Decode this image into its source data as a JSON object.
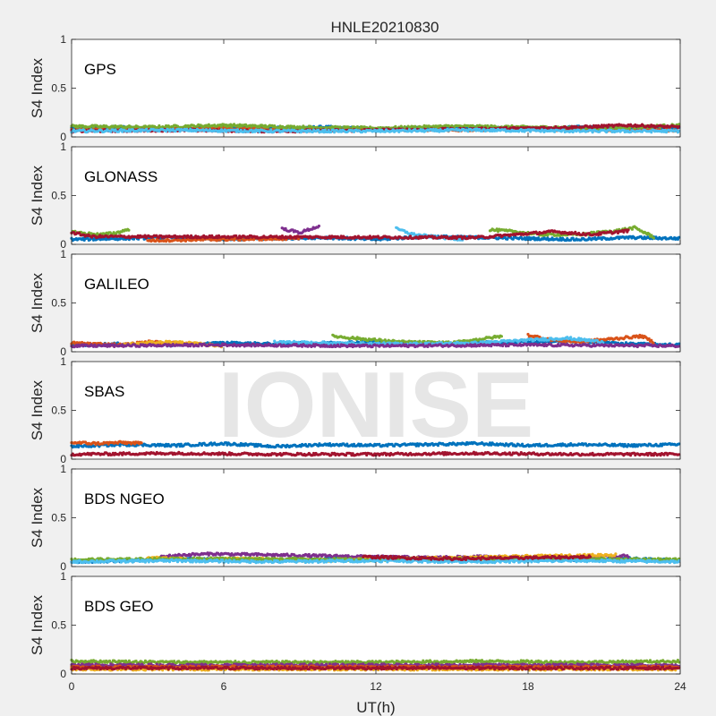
{
  "chart_data": {
    "type": "scatter",
    "title": "HNLE20210830",
    "xlabel": "UT(h)",
    "ylabel": "S4 Index",
    "xlim": [
      0,
      24
    ],
    "ylim": [
      0,
      1
    ],
    "xticks": [
      "0",
      "6",
      "12",
      "18",
      "24"
    ],
    "yticks": [
      "0",
      "0.5",
      "1"
    ],
    "watermark": "IONISE",
    "grid": false,
    "colors": [
      "#0072bd",
      "#d95319",
      "#edb120",
      "#7e2f8e",
      "#77ac30",
      "#4dbeee",
      "#a2142f"
    ],
    "panels": [
      {
        "label": "GPS",
        "series": [
          {
            "color": "#0072bd",
            "x": [
              0,
              2,
              4,
              6,
              8,
              10,
              12,
              14,
              16,
              18,
              20,
              22,
              24
            ],
            "y": [
              0.09,
              0.1,
              0.08,
              0.1,
              0.09,
              0.1,
              0.08,
              0.09,
              0.1,
              0.08,
              0.1,
              0.09,
              0.1
            ]
          },
          {
            "color": "#d95319",
            "x": [
              0,
              3,
              6,
              9,
              12,
              15,
              18,
              21,
              24
            ],
            "y": [
              0.07,
              0.08,
              0.09,
              0.07,
              0.08,
              0.07,
              0.08,
              0.07,
              0.07
            ]
          },
          {
            "color": "#77ac30",
            "x": [
              0,
              3,
              6,
              9,
              12,
              15,
              18,
              21,
              24
            ],
            "y": [
              0.11,
              0.1,
              0.12,
              0.1,
              0.09,
              0.11,
              0.1,
              0.09,
              0.12
            ]
          },
          {
            "color": "#a2142f",
            "x": [
              0,
              4,
              8,
              12,
              16,
              20,
              22,
              24
            ],
            "y": [
              0.06,
              0.07,
              0.06,
              0.07,
              0.08,
              0.1,
              0.12,
              0.1
            ]
          },
          {
            "color": "#4dbeee",
            "x": [
              0,
              4,
              8,
              12,
              16,
              20,
              24
            ],
            "y": [
              0.06,
              0.07,
              0.06,
              0.06,
              0.07,
              0.06,
              0.06
            ]
          }
        ]
      },
      {
        "label": "GLONASS",
        "series": [
          {
            "color": "#0072bd",
            "x": [
              0,
              2,
              4,
              6,
              8,
              10,
              12,
              14,
              16,
              18,
              20,
              22,
              24
            ],
            "y": [
              0.05,
              0.06,
              0.07,
              0.05,
              0.06,
              0.07,
              0.05,
              0.08,
              0.07,
              0.06,
              0.05,
              0.07,
              0.06
            ]
          },
          {
            "color": "#d95319",
            "x": [
              3,
              6,
              9
            ],
            "y": [
              0.04,
              0.05,
              0.06
            ]
          },
          {
            "color": "#77ac30",
            "x": [
              0,
              0.6,
              1.2,
              1.8,
              2.3
            ],
            "y": [
              0.13,
              0.11,
              0.1,
              0.12,
              0.16
            ]
          },
          {
            "color": "#7e2f8e",
            "x": [
              8.3,
              9.0,
              9.8
            ],
            "y": [
              0.16,
              0.12,
              0.19
            ]
          },
          {
            "color": "#4dbeee",
            "x": [
              12.8,
              13.5,
              14.5,
              15.5
            ],
            "y": [
              0.16,
              0.1,
              0.07,
              0.05
            ]
          },
          {
            "color": "#77ac30",
            "x": [
              16.5,
              17.5,
              18.5,
              20,
              21.5,
              22.2,
              23
            ],
            "y": [
              0.15,
              0.13,
              0.1,
              0.1,
              0.14,
              0.17,
              0.07
            ]
          },
          {
            "color": "#a2142f",
            "x": [
              0,
              0.8,
              16,
              19,
              20.5,
              22
            ],
            "y": [
              0.12,
              0.08,
              0.07,
              0.13,
              0.1,
              0.14
            ]
          }
        ]
      },
      {
        "label": "GALILEO",
        "series": [
          {
            "color": "#0072bd",
            "x": [
              0,
              2,
              4,
              6,
              8,
              10,
              12,
              14,
              16,
              18,
              20,
              22,
              24
            ],
            "y": [
              0.07,
              0.08,
              0.07,
              0.09,
              0.08,
              0.09,
              0.1,
              0.08,
              0.09,
              0.1,
              0.11,
              0.08,
              0.07
            ]
          },
          {
            "color": "#d95319",
            "x": [
              0,
              1,
              2,
              3,
              4,
              5
            ],
            "y": [
              0.09,
              0.08,
              0.07,
              0.1,
              0.09,
              0.08
            ]
          },
          {
            "color": "#edb120",
            "x": [
              2,
              3,
              4,
              5,
              6
            ],
            "y": [
              0.07,
              0.09,
              0.1,
              0.08,
              0.06
            ]
          },
          {
            "color": "#77ac30",
            "x": [
              10.3,
              11.5,
              13,
              15,
              17
            ],
            "y": [
              0.16,
              0.13,
              0.1,
              0.09,
              0.16
            ]
          },
          {
            "color": "#d95319",
            "x": [
              18,
              19,
              20,
              22.5,
              23
            ],
            "y": [
              0.17,
              0.12,
              0.1,
              0.16,
              0.09
            ]
          },
          {
            "color": "#4dbeee",
            "x": [
              8,
              10,
              12,
              14,
              16,
              19.5,
              21
            ],
            "y": [
              0.1,
              0.09,
              0.08,
              0.08,
              0.09,
              0.14,
              0.1
            ]
          },
          {
            "color": "#7e2f8e",
            "x": [
              0,
              6,
              12,
              18,
              24
            ],
            "y": [
              0.06,
              0.07,
              0.06,
              0.07,
              0.06
            ]
          }
        ]
      },
      {
        "label": "SBAS",
        "series": [
          {
            "color": "#0072bd",
            "x": [
              0,
              2,
              4,
              6,
              8,
              10,
              12,
              14,
              16,
              18,
              20,
              22,
              24
            ],
            "y": [
              0.13,
              0.15,
              0.14,
              0.16,
              0.13,
              0.15,
              0.14,
              0.15,
              0.16,
              0.14,
              0.15,
              0.14,
              0.15
            ]
          },
          {
            "color": "#d95319",
            "x": [
              0,
              1,
              2,
              2.8
            ],
            "y": [
              0.17,
              0.16,
              0.17,
              0.16
            ]
          },
          {
            "color": "#a2142f",
            "x": [
              0,
              4,
              8,
              12,
              16,
              20,
              24
            ],
            "y": [
              0.05,
              0.06,
              0.05,
              0.05,
              0.06,
              0.05,
              0.05
            ]
          }
        ]
      },
      {
        "label": "BDS NGEO",
        "series": [
          {
            "color": "#0072bd",
            "x": [
              0,
              2,
              4,
              6,
              8,
              10,
              12,
              14,
              16,
              18,
              20,
              22,
              24
            ],
            "y": [
              0.05,
              0.06,
              0.08,
              0.07,
              0.06,
              0.08,
              0.09,
              0.07,
              0.08,
              0.09,
              0.07,
              0.08,
              0.06
            ]
          },
          {
            "color": "#7e2f8e",
            "x": [
              3.5,
              4.5,
              5.5,
              14,
              16,
              20,
              22
            ],
            "y": [
              0.1,
              0.12,
              0.13,
              0.09,
              0.1,
              0.09,
              0.11
            ]
          },
          {
            "color": "#edb120",
            "x": [
              3,
              5,
              7,
              9,
              11,
              21.5
            ],
            "y": [
              0.09,
              0.07,
              0.08,
              0.06,
              0.07,
              0.12
            ]
          },
          {
            "color": "#77ac30",
            "x": [
              0,
              6,
              12,
              18,
              24
            ],
            "y": [
              0.07,
              0.08,
              0.07,
              0.08,
              0.07
            ]
          },
          {
            "color": "#4dbeee",
            "x": [
              0,
              4,
              8,
              12,
              16,
              20,
              24
            ],
            "y": [
              0.05,
              0.06,
              0.05,
              0.06,
              0.05,
              0.06,
              0.05
            ]
          },
          {
            "color": "#a2142f",
            "x": [
              11.5,
              13,
              15,
              18,
              20.5
            ],
            "y": [
              0.1,
              0.09,
              0.08,
              0.09,
              0.1
            ]
          }
        ]
      },
      {
        "label": "BDS GEO",
        "series": [
          {
            "color": "#77ac30",
            "x": [
              0,
              4,
              8,
              12,
              16,
              20,
              24
            ],
            "y": [
              0.13,
              0.12,
              0.12,
              0.12,
              0.13,
              0.12,
              0.13
            ]
          },
          {
            "color": "#7e2f8e",
            "x": [
              0,
              4,
              8,
              12,
              16,
              20,
              24
            ],
            "y": [
              0.09,
              0.09,
              0.09,
              0.09,
              0.09,
              0.09,
              0.09
            ]
          },
          {
            "color": "#d95319",
            "x": [
              0,
              4,
              8,
              12,
              16,
              20,
              24
            ],
            "y": [
              0.07,
              0.07,
              0.07,
              0.07,
              0.07,
              0.07,
              0.07
            ]
          },
          {
            "color": "#edb120",
            "x": [
              0,
              4,
              8,
              12,
              16,
              20,
              24
            ],
            "y": [
              0.05,
              0.05,
              0.05,
              0.05,
              0.05,
              0.05,
              0.05
            ]
          },
          {
            "color": "#a2142f",
            "x": [
              0,
              4,
              8,
              12,
              16,
              20,
              24
            ],
            "y": [
              0.06,
              0.06,
              0.06,
              0.06,
              0.06,
              0.06,
              0.06
            ]
          }
        ]
      }
    ]
  }
}
